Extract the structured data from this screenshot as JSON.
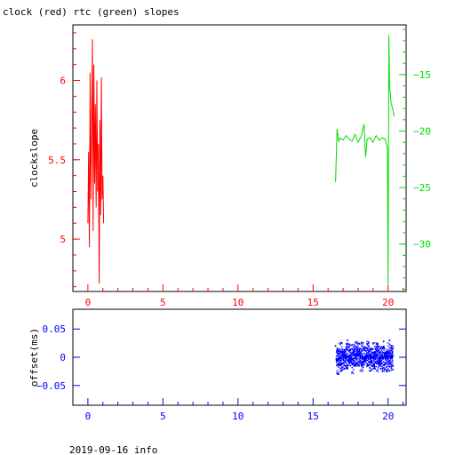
{
  "colors": {
    "clock": "#ff0000",
    "rtc": "#00dd00",
    "offset": "#0000ff",
    "axis": "#000000",
    "background": "#ffffff"
  },
  "footer": {
    "text": "2019-09-16 info"
  },
  "chart_data": [
    {
      "type": "line",
      "title": "clock (red) rtc (green) slopes",
      "xlabel": "",
      "ylabel": "clockslope",
      "xlim": [
        -1,
        21.2
      ],
      "ylim": [
        4.67,
        6.35
      ],
      "y2lim": [
        -34.2,
        -10.6
      ],
      "x_ticks": [
        0,
        5,
        10,
        15,
        20
      ],
      "y_ticks": [
        5,
        5.5,
        6
      ],
      "y2_ticks": [
        -30,
        -25,
        -20,
        -15
      ],
      "grid": false,
      "series": [
        {
          "name": "clock",
          "axis": "left",
          "x": [
            0.0,
            0.05,
            0.1,
            0.15,
            0.2,
            0.25,
            0.3,
            0.35,
            0.4,
            0.45,
            0.5,
            0.55,
            0.6,
            0.65,
            0.7,
            0.75,
            0.8,
            0.85,
            0.9,
            0.95,
            1.0,
            1.05
          ],
          "values": [
            5.1,
            5.55,
            4.95,
            6.05,
            5.25,
            5.7,
            6.26,
            5.05,
            6.1,
            5.35,
            5.85,
            5.2,
            6.0,
            5.3,
            5.6,
            4.72,
            5.75,
            5.15,
            6.02,
            5.25,
            5.4,
            5.1
          ]
        },
        {
          "name": "rtc",
          "axis": "right",
          "x": [
            16.5,
            16.6,
            16.7,
            16.8,
            17.0,
            17.2,
            17.4,
            17.6,
            17.8,
            18.0,
            18.2,
            18.4,
            18.5,
            18.6,
            18.8,
            19.0,
            19.2,
            19.4,
            19.6,
            19.8,
            19.95,
            20.0,
            20.05,
            20.1,
            20.2,
            20.3,
            20.4
          ],
          "values": [
            -24.5,
            -19.8,
            -20.9,
            -20.6,
            -20.8,
            -20.4,
            -20.7,
            -20.9,
            -20.3,
            -21.0,
            -20.5,
            -19.4,
            -22.3,
            -20.7,
            -20.6,
            -21.0,
            -20.4,
            -20.8,
            -20.6,
            -20.7,
            -21.5,
            -33.5,
            -11.5,
            -16.0,
            -17.5,
            -18.0,
            -18.7
          ]
        }
      ]
    },
    {
      "type": "scatter",
      "title": "",
      "xlabel": "",
      "ylabel": "offset(ms)",
      "xlim": [
        -1,
        21.2
      ],
      "ylim": [
        -0.085,
        0.085
      ],
      "x_ticks": [
        0,
        5,
        10,
        15,
        20
      ],
      "y_ticks": [
        0.05,
        0,
        -0.05
      ],
      "grid": false,
      "series": [
        {
          "name": "offset",
          "x": [
            16.5,
            16.7,
            16.9,
            17.1,
            17.3,
            17.5,
            17.7,
            17.9,
            18.1,
            18.3,
            18.5,
            18.7,
            18.9,
            19.1,
            19.3,
            19.5,
            19.7,
            19.9,
            20.1,
            20.3
          ],
          "values": [
            0.02,
            -0.03,
            0.025,
            -0.02,
            0.03,
            -0.015,
            0.01,
            0.015,
            0.012,
            -0.008,
            0.018,
            0.01,
            -0.01,
            0.005,
            0.02,
            -0.02,
            0.028,
            -0.025,
            0.03,
            -0.015
          ]
        }
      ]
    }
  ]
}
